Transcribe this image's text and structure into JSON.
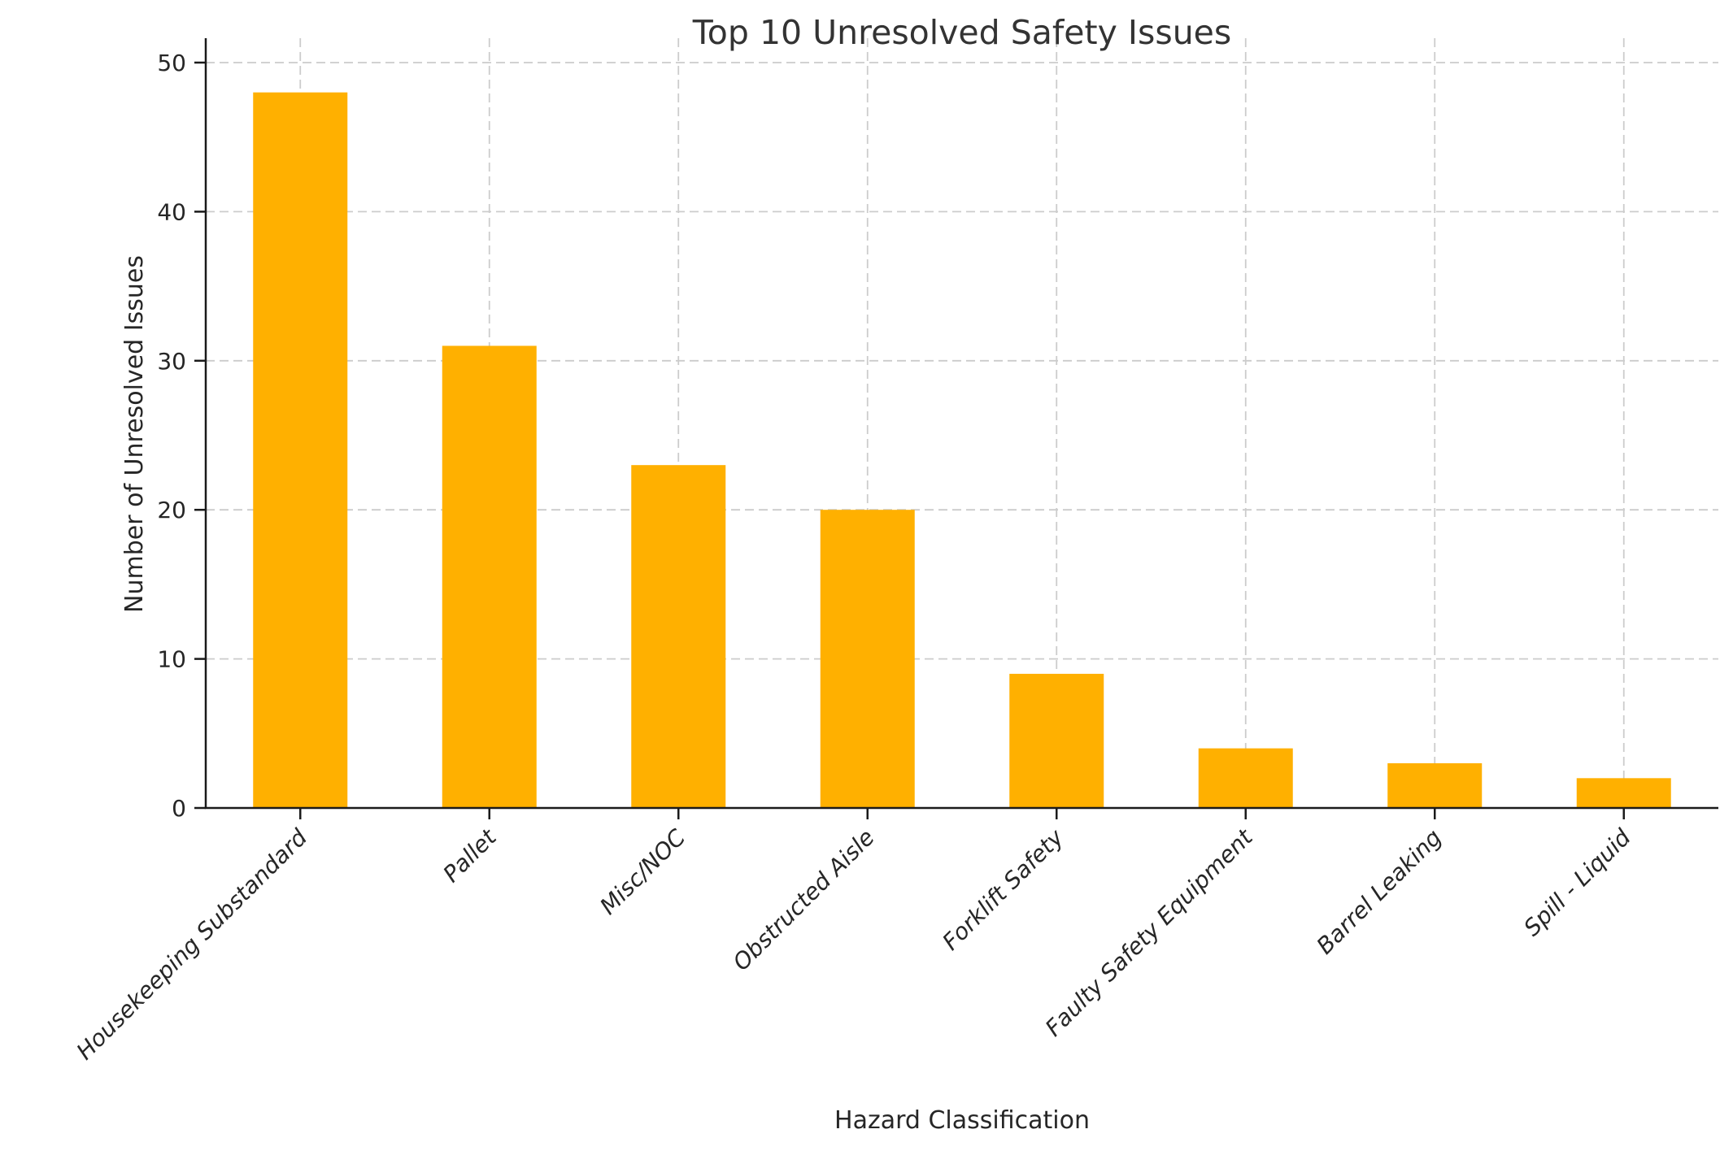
{
  "chart_data": {
    "type": "bar",
    "title": "Top 10 Unresolved Safety Issues",
    "xlabel": "Hazard Classification",
    "ylabel": "Number of Unresolved Issues",
    "categories": [
      "Housekeeping Substandard",
      "Pallet",
      "Misc/NOC",
      "Obstructed Aisle",
      "Forklift Safety",
      "Faulty Safety Equipment",
      "Barrel Leaking",
      "Spill - Liquid"
    ],
    "values": [
      48,
      31,
      23,
      20,
      9,
      4,
      3,
      2
    ],
    "yticks": [
      0,
      10,
      20,
      30,
      40,
      50
    ],
    "ylim": [
      0,
      51.6
    ],
    "grid": "dashed",
    "legend": "none",
    "bar_color": "#FFB000",
    "grid_color": "#cccccc",
    "axis_color": "#1a1a1a",
    "text_color": "#262626",
    "title_color": "#333333",
    "background_color": "#ffffff"
  }
}
